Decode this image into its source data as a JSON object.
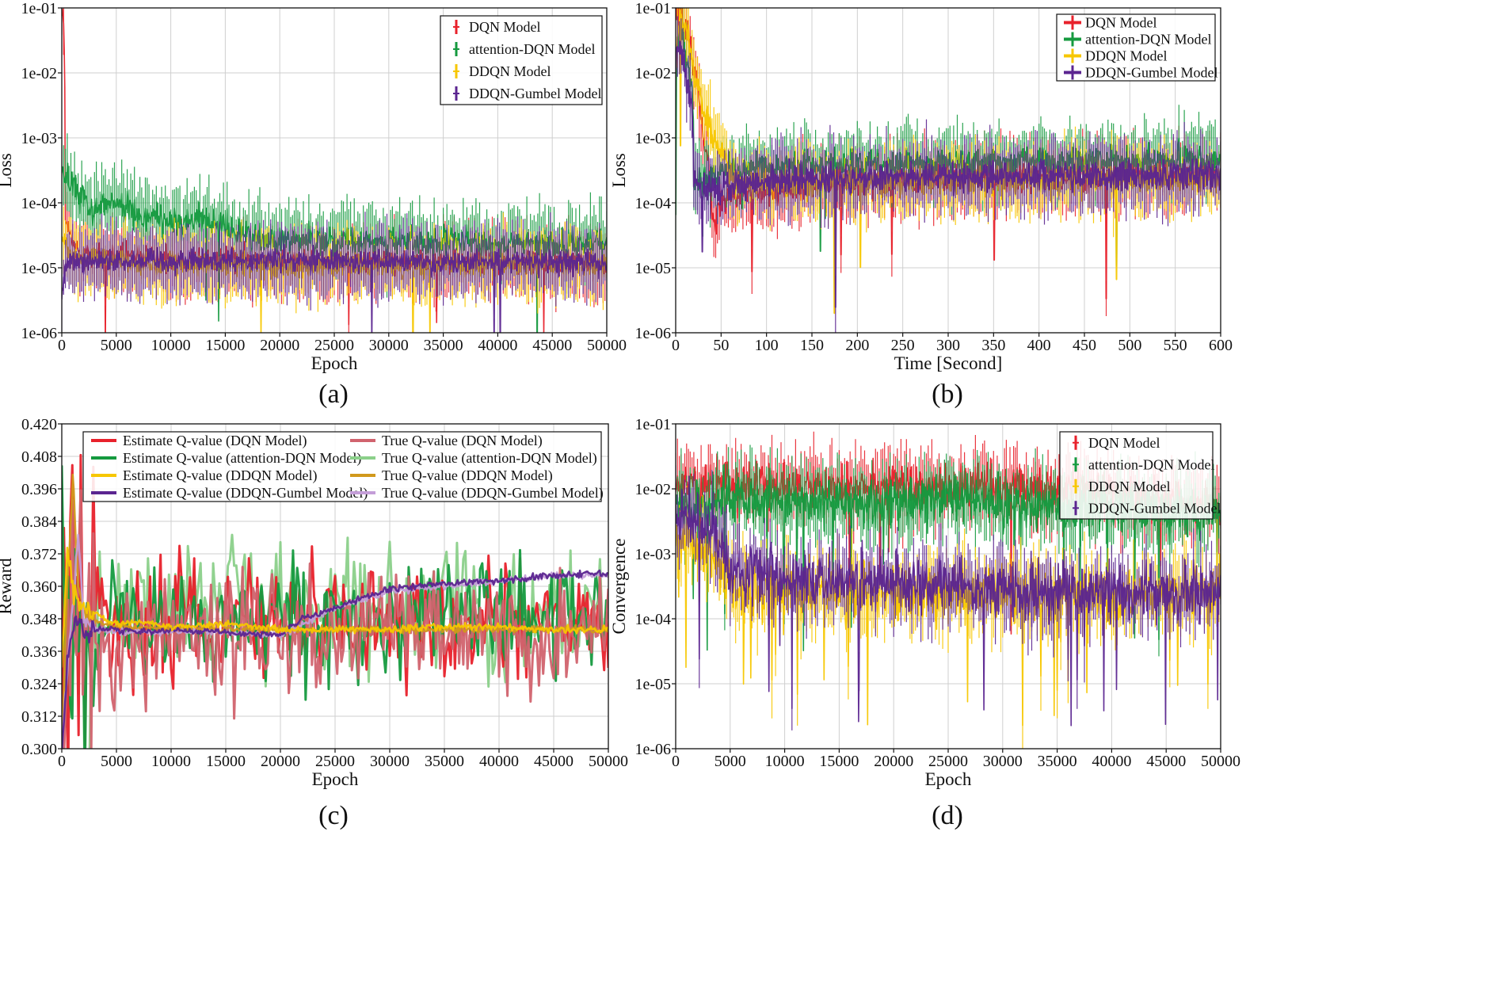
{
  "figure": {
    "captions": [
      "(a)",
      "(b)",
      "(c)",
      "(d)"
    ]
  },
  "colors": {
    "dqn": "#e8212b",
    "attention": "#159a3f",
    "ddqn": "#f7c700",
    "gumbel": "#5b2590",
    "true_dqn": "#d1636e",
    "true_attention": "#8bd08a",
    "true_ddqn": "#d1991c",
    "true_gumbel": "#c49ed8"
  },
  "chart_data": [
    {
      "id": "a",
      "type": "line",
      "title": "",
      "xlabel": "Epoch",
      "ylabel": "Loss",
      "yscale": "log",
      "xlim": [
        0,
        50000
      ],
      "ylim": [
        1e-06,
        0.1
      ],
      "xticks": [
        0,
        5000,
        10000,
        15000,
        20000,
        25000,
        30000,
        35000,
        40000,
        45000,
        50000
      ],
      "xtick_labels": [
        "0",
        "5000",
        "10000",
        "15000",
        "20000",
        "25000",
        "30000",
        "35000",
        "40000",
        "45000",
        "50000"
      ],
      "yticks": [
        1e-06,
        1e-05,
        0.0001,
        0.001,
        0.01,
        0.1
      ],
      "ytick_labels": [
        "1e-06",
        "1e-05",
        "1e-04",
        "1e-03",
        "1e-02",
        "1e-01"
      ],
      "grid": true,
      "legend_position": "top-right",
      "series": [
        {
          "name": "DQN Model",
          "color_key": "dqn",
          "style": "errorbar",
          "x": [
            0,
            300,
            1000,
            2500,
            5000,
            10000,
            20000,
            30000,
            40000,
            50000
          ],
          "values": [
            0.1,
            5e-05,
            2e-05,
            1.6e-05,
            1.5e-05,
            1.4e-05,
            1.3e-05,
            1.3e-05,
            1.2e-05,
            1.2e-05
          ]
        },
        {
          "name": "attention-DQN Model",
          "color_key": "attention",
          "style": "errorbar",
          "x": [
            0,
            1000,
            2500,
            5000,
            7500,
            10000,
            13000,
            15000,
            17500,
            20000,
            25000,
            30000,
            35000,
            40000,
            45000,
            50000
          ],
          "values": [
            0.0003,
            0.0002,
            8e-05,
            0.0001,
            6e-05,
            5e-05,
            6e-05,
            4e-05,
            3e-05,
            2.8e-05,
            2.6e-05,
            2.5e-05,
            2.4e-05,
            2.4e-05,
            2.3e-05,
            2.3e-05
          ]
        },
        {
          "name": "DDQN Model",
          "color_key": "ddqn",
          "style": "errorbar",
          "x": [
            0,
            1000,
            5000,
            10000,
            20000,
            30000,
            40000,
            50000
          ],
          "values": [
            3e-05,
            1.5e-05,
            1.2e-05,
            1.1e-05,
            1.1e-05,
            1.1e-05,
            1.1e-05,
            1.1e-05
          ]
        },
        {
          "name": "DDQN-Gumbel Model",
          "color_key": "gumbel",
          "style": "errorbar",
          "x": [
            0,
            500,
            1000,
            5000,
            10000,
            20000,
            30000,
            40000,
            50000
          ],
          "values": [
            3e-06,
            1.2e-05,
            1.3e-05,
            1.3e-05,
            1.3e-05,
            1.3e-05,
            1.25e-05,
            1.25e-05,
            1.2e-05
          ]
        }
      ]
    },
    {
      "id": "b",
      "type": "line",
      "title": "",
      "xlabel": "Time [Second]",
      "ylabel": "Loss",
      "yscale": "log",
      "xlim": [
        0,
        600
      ],
      "ylim": [
        1e-06,
        0.1
      ],
      "xticks": [
        0,
        50,
        100,
        150,
        200,
        250,
        300,
        350,
        400,
        450,
        500,
        550,
        600
      ],
      "xtick_labels": [
        "0",
        "50",
        "100",
        "150",
        "200",
        "250",
        "300",
        "350",
        "400",
        "450",
        "500",
        "550",
        "600"
      ],
      "yticks": [
        1e-06,
        1e-05,
        0.0001,
        0.001,
        0.01,
        0.1
      ],
      "ytick_labels": [
        "1e-06",
        "1e-05",
        "1e-04",
        "1e-03",
        "1e-02",
        "1e-01"
      ],
      "grid": true,
      "legend_position": "top-right",
      "series": [
        {
          "name": "DQN Model",
          "color_key": "dqn",
          "style": "errorbar",
          "x": [
            0,
            5,
            10,
            20,
            30,
            40,
            60,
            100,
            150,
            200,
            300,
            400,
            500,
            600
          ],
          "values": [
            0.08,
            0.1,
            0.05,
            0.01,
            0.001,
            5e-05,
            0.00012,
            0.00015,
            0.0002,
            0.00022,
            0.00025,
            0.00026,
            0.00027,
            0.00027
          ]
        },
        {
          "name": "attention-DQN Model",
          "color_key": "attention",
          "style": "errorbar",
          "x": [
            0,
            5,
            10,
            20,
            30,
            50,
            100,
            200,
            300,
            400,
            500,
            600
          ],
          "values": [
            0.0001,
            0.06,
            0.02,
            0.0002,
            0.0002,
            0.0003,
            0.00035,
            0.0004,
            0.00042,
            0.00044,
            0.00045,
            0.00045
          ]
        },
        {
          "name": "DDQN Model",
          "color_key": "ddqn",
          "style": "errorbar",
          "x": [
            0,
            5,
            10,
            20,
            30,
            40,
            60,
            100,
            200,
            300,
            400,
            500,
            600
          ],
          "values": [
            0.01,
            0.08,
            0.05,
            0.01,
            0.003,
            0.001,
            0.0002,
            0.0002,
            0.0002,
            0.00022,
            0.00023,
            0.00023,
            0.00023
          ]
        },
        {
          "name": "DDQN-Gumbel Model",
          "color_key": "gumbel",
          "style": "errorbar",
          "x": [
            0,
            5,
            10,
            20,
            30,
            60,
            100,
            200,
            300,
            400,
            500,
            600
          ],
          "values": [
            0.02,
            0.03,
            0.01,
            0.0002,
            0.00015,
            0.0002,
            0.00022,
            0.00024,
            0.00025,
            0.00026,
            0.00027,
            0.00028
          ]
        }
      ]
    },
    {
      "id": "c",
      "type": "line",
      "title": "",
      "xlabel": "Epoch",
      "ylabel": "Reward",
      "yscale": "linear",
      "xlim": [
        0,
        50000
      ],
      "ylim": [
        0.3,
        0.42
      ],
      "xticks": [
        0,
        5000,
        10000,
        15000,
        20000,
        25000,
        30000,
        35000,
        40000,
        45000,
        50000
      ],
      "xtick_labels": [
        "0",
        "5000",
        "10000",
        "15000",
        "20000",
        "25000",
        "30000",
        "35000",
        "40000",
        "45000",
        "50000"
      ],
      "yticks": [
        0.3,
        0.312,
        0.324,
        0.336,
        0.348,
        0.36,
        0.372,
        0.384,
        0.396,
        0.408,
        0.42
      ],
      "ytick_labels": [
        "0.300",
        "0.312",
        "0.324",
        "0.336",
        "0.348",
        "0.360",
        "0.372",
        "0.384",
        "0.396",
        "0.408",
        "0.420"
      ],
      "grid": true,
      "legend_position": "top",
      "series": [
        {
          "name": "Estimate Q-value (DQN Model)",
          "color_key": "dqn",
          "style": "line",
          "x": [
            0,
            1000,
            2000,
            5000,
            10000,
            20000,
            30000,
            40000,
            50000
          ],
          "values": [
            0.33,
            0.35,
            0.345,
            0.348,
            0.346,
            0.347,
            0.348,
            0.348,
            0.348
          ]
        },
        {
          "name": "Estimate Q-value (attention-DQN Model)",
          "color_key": "attention",
          "style": "line",
          "x": [
            0,
            1000,
            2000,
            5000,
            10000,
            20000,
            30000,
            40000,
            50000
          ],
          "values": [
            0.33,
            0.35,
            0.345,
            0.346,
            0.345,
            0.348,
            0.349,
            0.35,
            0.35
          ]
        },
        {
          "name": "Estimate Q-value (DDQN Model)",
          "color_key": "ddqn",
          "style": "line",
          "x": [
            0,
            500,
            1000,
            1500,
            2000,
            3000,
            5000,
            7000,
            10000,
            15000,
            20000,
            25000,
            30000,
            35000,
            40000,
            45000,
            50000
          ],
          "values": [
            0.33,
            0.372,
            0.36,
            0.355,
            0.352,
            0.35,
            0.346,
            0.347,
            0.345,
            0.346,
            0.344,
            0.344,
            0.344,
            0.345,
            0.345,
            0.344,
            0.344
          ]
        },
        {
          "name": "Estimate Q-value (DDQN-Gumbel Model)",
          "color_key": "gumbel",
          "style": "line",
          "x": [
            0,
            500,
            1000,
            1500,
            2000,
            3000,
            5000,
            7000,
            10000,
            15000,
            20000,
            22000,
            25000,
            27000,
            30000,
            35000,
            40000,
            45000,
            50000
          ],
          "values": [
            0.3,
            0.33,
            0.345,
            0.35,
            0.342,
            0.344,
            0.344,
            0.343,
            0.344,
            0.343,
            0.342,
            0.348,
            0.352,
            0.355,
            0.359,
            0.361,
            0.362,
            0.364,
            0.365
          ]
        },
        {
          "name": "True Q-value (DQN Model)",
          "color_key": "true_dqn",
          "style": "line",
          "x": [
            0,
            1000,
            2000,
            5000,
            10000,
            20000,
            30000,
            40000,
            50000
          ],
          "values": [
            0.31,
            0.34,
            0.34,
            0.342,
            0.342,
            0.343,
            0.344,
            0.344,
            0.344
          ]
        },
        {
          "name": "True Q-value (attention-DQN Model)",
          "color_key": "true_attention",
          "style": "line",
          "x": [
            0,
            1000,
            2000,
            5000,
            10000,
            20000,
            30000,
            40000,
            50000
          ],
          "values": [
            0.34,
            0.35,
            0.348,
            0.35,
            0.35,
            0.352,
            0.353,
            0.352,
            0.352
          ]
        },
        {
          "name": "True Q-value (DDQN Model)",
          "color_key": "true_ddqn",
          "style": "line",
          "x": [
            0,
            500,
            1000,
            1500,
            2000,
            3000,
            5000,
            10000,
            20000,
            30000,
            40000,
            50000
          ],
          "values": [
            0.3,
            0.36,
            0.402,
            0.36,
            0.35,
            0.347,
            0.345,
            0.344,
            0.344,
            0.344,
            0.344,
            0.344
          ]
        },
        {
          "name": "True Q-value (DDQN-Gumbel Model)",
          "color_key": "true_gumbel",
          "style": "line",
          "x": [
            0,
            500,
            1000,
            1500,
            2000,
            3000,
            5000,
            10000,
            15000,
            20000,
            25000,
            30000,
            35000,
            40000,
            45000,
            50000
          ],
          "values": [
            0.3,
            0.33,
            0.35,
            0.378,
            0.35,
            0.344,
            0.343,
            0.343,
            0.343,
            0.342,
            0.352,
            0.358,
            0.36,
            0.362,
            0.364,
            0.364
          ]
        }
      ]
    },
    {
      "id": "d",
      "type": "line",
      "title": "",
      "xlabel": "Epoch",
      "ylabel": "Convergence",
      "yscale": "log",
      "xlim": [
        0,
        50000
      ],
      "ylim": [
        1e-06,
        0.1
      ],
      "xticks": [
        0,
        5000,
        10000,
        15000,
        20000,
        25000,
        30000,
        35000,
        40000,
        45000,
        50000
      ],
      "xtick_labels": [
        "0",
        "5000",
        "10000",
        "15000",
        "20000",
        "25000",
        "30000",
        "35000",
        "40000",
        "45000",
        "50000"
      ],
      "yticks": [
        1e-06,
        1e-05,
        0.0001,
        0.001,
        0.01,
        0.1
      ],
      "ytick_labels": [
        "1e-06",
        "1e-05",
        "1e-04",
        "1e-03",
        "1e-02",
        "1e-01"
      ],
      "grid": true,
      "legend_position": "top-right",
      "series": [
        {
          "name": "DQN Model",
          "color_key": "dqn",
          "style": "errorbar",
          "x": [
            0,
            5000,
            10000,
            20000,
            30000,
            40000,
            50000
          ],
          "values": [
            0.01,
            0.012,
            0.01,
            0.011,
            0.01,
            0.009,
            0.005
          ]
        },
        {
          "name": "attention-DQN Model",
          "color_key": "attention",
          "style": "errorbar",
          "x": [
            0,
            5000,
            10000,
            20000,
            30000,
            40000,
            50000
          ],
          "values": [
            0.005,
            0.008,
            0.006,
            0.007,
            0.006,
            0.005,
            0.004
          ]
        },
        {
          "name": "DDQN Model",
          "color_key": "ddqn",
          "style": "errorbar",
          "x": [
            0,
            5000,
            10000,
            20000,
            30000,
            40000,
            50000
          ],
          "values": [
            0.002,
            0.0003,
            0.00025,
            0.00025,
            0.00025,
            0.0002,
            0.0003
          ]
        },
        {
          "name": "DDQN-Gumbel Model",
          "color_key": "gumbel",
          "style": "errorbar",
          "x": [
            0,
            5000,
            10000,
            20000,
            30000,
            40000,
            50000
          ],
          "values": [
            0.005,
            0.0006,
            0.0004,
            0.00035,
            0.0003,
            0.00025,
            0.00025
          ]
        }
      ]
    }
  ]
}
